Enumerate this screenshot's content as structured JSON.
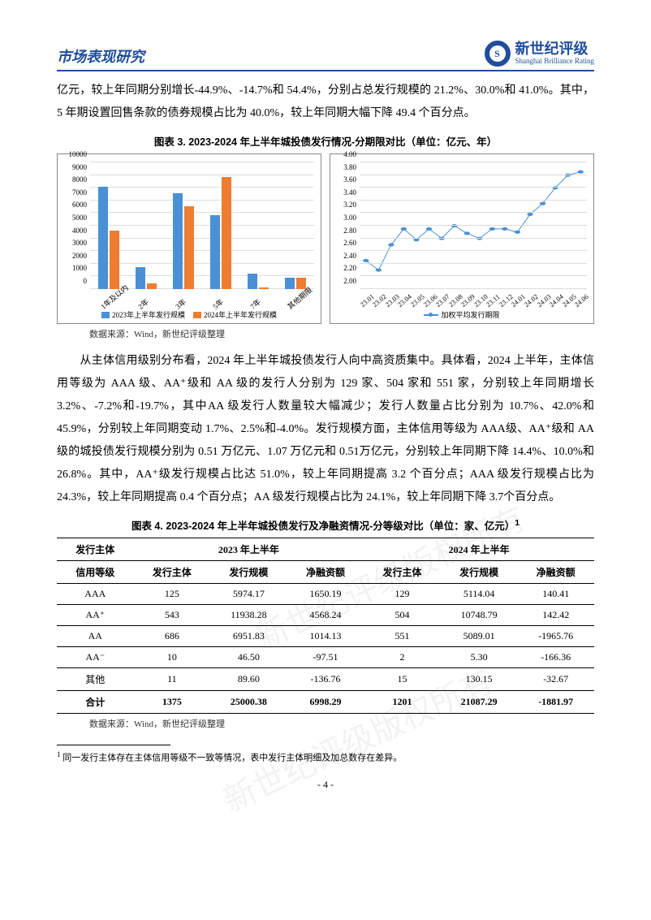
{
  "header": {
    "section_title": "市场表现研究",
    "logo_cn": "新世纪评级",
    "logo_en": "Shanghai Brilliance Rating",
    "logo_letter": "S"
  },
  "para1": "亿元，较上年同期分别增长-44.9%、-14.7%和 54.4%，分别占总发行规模的 21.2%、30.0%和 41.0%。其中，5 年期设置回售条款的债券规模占比为 40.0%，较上年同期大幅下降 49.4 个百分点。",
  "chart3": {
    "title": "图表 3. 2023-2024 年上半年城投债发行情况-分期限对比（单位：亿元、年）",
    "bar": {
      "ymax": 10000,
      "ystep": 1000,
      "categories": [
        "1年及以内",
        "2年",
        "3年",
        "5年",
        "7年",
        "其他期限"
      ],
      "series_2023": [
        7900,
        1700,
        7400,
        5700,
        1200,
        900
      ],
      "series_2024": [
        4500,
        450,
        6400,
        8600,
        100,
        900
      ],
      "color_2023": "#4a90d6",
      "color_2024": "#ed7d31",
      "legend_2023": "2023年上半年发行规模",
      "legend_2024": "2024年上半年发行规模"
    },
    "line": {
      "ymin": 2.0,
      "ymax": 4.0,
      "ystep": 0.2,
      "x_labels": [
        "23.01",
        "23.02",
        "23.03",
        "23.04",
        "23.05",
        "23.06",
        "23.07",
        "23.08",
        "23.09",
        "23.10",
        "23.11",
        "23.12",
        "24.01",
        "24.02",
        "24.03",
        "24.04",
        "24.05",
        "24.06"
      ],
      "values": [
        2.45,
        2.3,
        2.7,
        2.95,
        2.78,
        2.95,
        2.8,
        3.0,
        2.88,
        2.8,
        2.95,
        2.95,
        2.9,
        3.18,
        3.35,
        3.6,
        3.8,
        3.85
      ],
      "color": "#4a90d6",
      "legend": "加权平均发行期限"
    },
    "source": "数据来源：Wind，新世纪评级整理"
  },
  "para2_indent": "　　从主体信用级别分布看，2024 年上半年城投债发行人向中高资质集中。具体看，2024 上半年，主体信用等级为 AAA 级、AA⁺级和 AA 级的发行人分别为 129 家、504 家和 551 家，分别较上年同期增长 3.2%、-7.2%和-19.7%，其中AA 级发行人数量较大幅减少；发行人数量占比分别为 10.7%、42.0%和 45.9%，分别较上年同期变动 1.7%、2.5%和-4.0%。发行规模方面，主体信用等级为 AAA级、AA⁺级和 AA 级的城投债发行规模分别为 0.51 万亿元、1.07 万亿元和 0.51万亿元，分别较上年同期下降 14.4%、10.0%和 26.8%。其中，AA⁺级发行规模占比达 51.0%，较上年同期提高 3.2 个百分点；AAA 级发行规模占比为 24.3%，较上年同期提高 0.4 个百分点；AA 级发行规模占比为 24.1%，较上年同期下降 3.7个百分点。",
  "table4": {
    "title": "图表 4. 2023-2024 年上半年城投债发行及净融资情况-分等级对比（单位：家、亿元）",
    "footref": "1",
    "head_col1a": "发行主体",
    "head_col1b": "信用等级",
    "head_2023": "2023 年上半年",
    "head_2024": "2024 年上半年",
    "sub_issuer": "发行主体",
    "sub_scale": "发行规模",
    "sub_net": "净融资额",
    "rows": [
      {
        "lvl": "AAA",
        "a": "125",
        "b": "5974.17",
        "c": "1650.19",
        "d": "129",
        "e": "5114.04",
        "f": "140.41"
      },
      {
        "lvl": "AA⁺",
        "a": "543",
        "b": "11938.28",
        "c": "4568.24",
        "d": "504",
        "e": "10748.79",
        "f": "142.42"
      },
      {
        "lvl": "AA",
        "a": "686",
        "b": "6951.83",
        "c": "1014.13",
        "d": "551",
        "e": "5089.01",
        "f": "-1965.76"
      },
      {
        "lvl": "AA⁻",
        "a": "10",
        "b": "46.50",
        "c": "-97.51",
        "d": "2",
        "e": "5.30",
        "f": "-166.36"
      },
      {
        "lvl": "其他",
        "a": "11",
        "b": "89.60",
        "c": "-136.76",
        "d": "15",
        "e": "130.15",
        "f": "-32.67"
      },
      {
        "lvl": "合计",
        "a": "1375",
        "b": "25000.38",
        "c": "6998.29",
        "d": "1201",
        "e": "21087.29",
        "f": "-1881.97"
      }
    ],
    "source": "数据来源：Wind，新世纪评级整理"
  },
  "footnote": {
    "num": "1",
    "text": " 同一发行主体存在主体信用等级不一致等情况，表中发行主体明细及加总数存在差异。"
  },
  "page_num": "- 4 -",
  "watermark": "新世纪评级版权所有"
}
